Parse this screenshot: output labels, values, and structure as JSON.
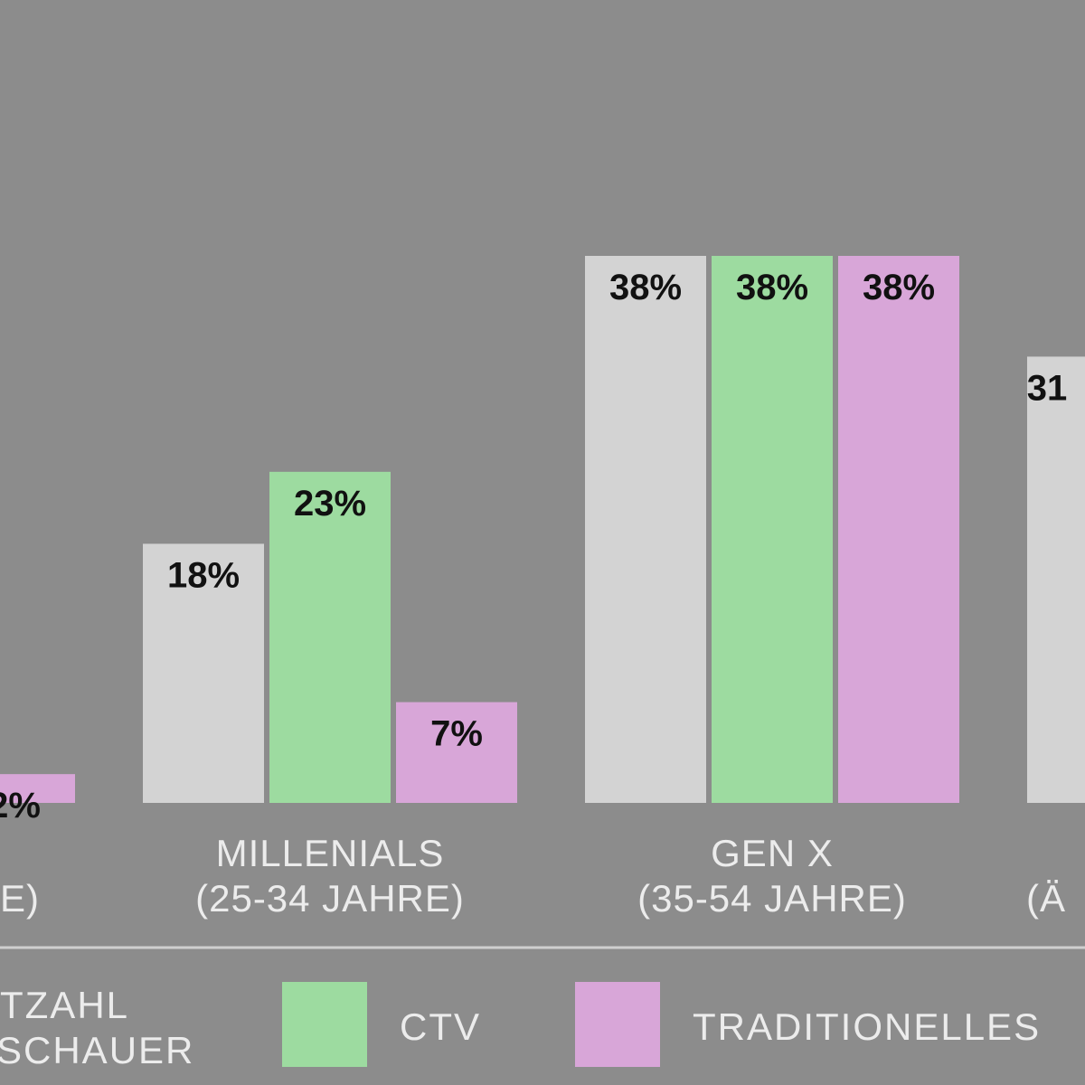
{
  "chart_data": {
    "type": "bar",
    "categories": [
      [
        "E)"
      ],
      [
        "MILLENIALS",
        "(25-34 JAHRE)"
      ],
      [
        "GEN X",
        "(35-54 JAHRE)"
      ],
      [
        "(Ä"
      ]
    ],
    "series": [
      {
        "name": [
          "TZAHL",
          "SCHAUER"
        ],
        "color": "#d3d3d3",
        "values": [
          null,
          18,
          38,
          31
        ],
        "value_labels": [
          null,
          "18%",
          "38%",
          "31"
        ]
      },
      {
        "name": [
          "CTV"
        ],
        "color": "#9ddba0",
        "values": [
          null,
          23,
          38,
          null
        ],
        "value_labels": [
          null,
          "23%",
          "38%",
          null
        ]
      },
      {
        "name": [
          "TRADITIONELLES"
        ],
        "color": "#d8a6d8",
        "values": [
          2,
          7,
          38,
          null
        ],
        "value_labels": [
          "2%",
          "7%",
          "38%",
          null
        ]
      }
    ]
  }
}
